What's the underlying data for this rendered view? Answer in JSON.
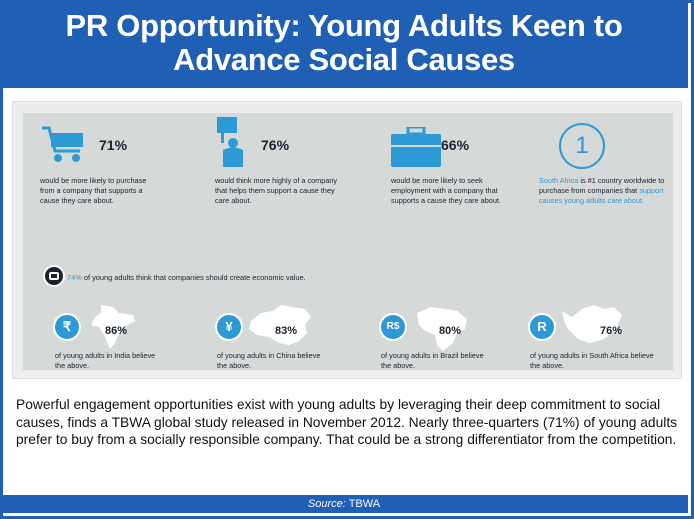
{
  "header": {
    "title_line1": "PR Opportunity: Young Adults Keen to",
    "title_line2": "Advance Social Causes"
  },
  "infographic": {
    "stats": [
      {
        "icon": "shopping-cart-icon",
        "percent": "71%",
        "description": "would be more likely to purchase from a company that supports a cause they care about."
      },
      {
        "icon": "megaphone-person-icon",
        "percent": "76%",
        "description": "would think more highly of a company that helps them support a cause they care about."
      },
      {
        "icon": "briefcase-icon",
        "percent": "66%",
        "description": "would be more likely to seek employment with a company that supports a cause they care about."
      },
      {
        "icon": "rank-one-icon",
        "rank_number": "1",
        "desc_hl1": "South Africa",
        "desc_part2": " is #1 country worldwide to purchase from companies that ",
        "desc_hl2": "support causes young adults care about."
      }
    ],
    "economic_value": {
      "highlight": "74%",
      "text": " of young adults think that companies should create economic value."
    },
    "countries": [
      {
        "currency": "₹",
        "percent": "86%",
        "description": "of young adults in India believe the above.",
        "map": "india-map-icon"
      },
      {
        "currency": "¥",
        "percent": "83%",
        "description": "of young adults in China believe the above.",
        "map": "china-map-icon"
      },
      {
        "currency": "R$",
        "percent": "80%",
        "description": "of young adults in Brazil believe the above.",
        "map": "brazil-map-icon"
      },
      {
        "currency": "R",
        "percent": "76%",
        "description": "of young adults in South Africa believe the above.",
        "map": "south-africa-map-icon"
      }
    ]
  },
  "body_text": "Powerful engagement opportunities exist with young adults by leveraging their deep commitment to social causes, finds a TBWA global study released in November 2012. Nearly three-quarters (71%) of young adults prefer to buy from a socially responsible company. That could be a strong differentiator from the competition.",
  "footer": {
    "source_label": "Source:",
    "source_name": "TBWA"
  },
  "colors": {
    "brand_blue": "#1f5fb4",
    "accent_blue": "#2d9ad6",
    "panel_gray": "#d5d9d8",
    "text_dark": "#1b2230"
  }
}
